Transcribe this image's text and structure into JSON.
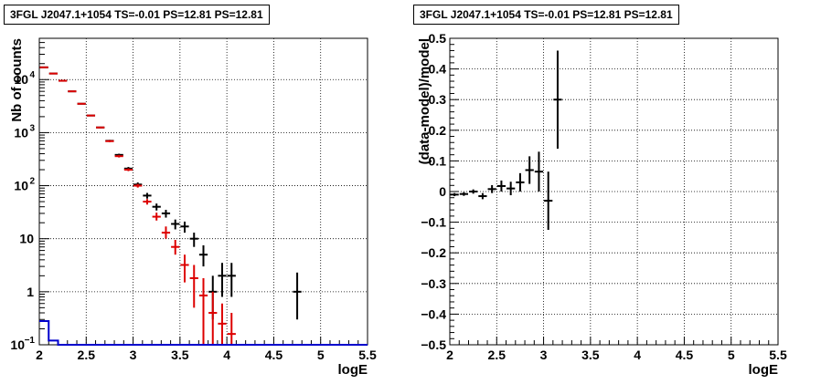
{
  "chart_data": [
    {
      "type": "scatter",
      "title": "3FGL J2047.1+1054 TS=-0.01 PS=12.81 PS=12.81",
      "xlabel": "logE",
      "ylabel": "Nb of counts",
      "xlim": [
        2,
        5.5
      ],
      "ylim": [
        0.1,
        60000
      ],
      "yscale": "log",
      "grid": true,
      "x_ticks": [
        2,
        2.5,
        3,
        3.5,
        4,
        4.5,
        5,
        5.5
      ],
      "x_tick_labels": [
        "2",
        "2.5",
        "3",
        "3.5",
        "4",
        "4.5",
        "5",
        "5.5"
      ],
      "y_ticks": [
        0.1,
        1,
        10,
        100,
        1000,
        10000
      ],
      "y_tick_labels": [
        [
          "10",
          "−1"
        ],
        [
          "1",
          ""
        ],
        [
          "10",
          ""
        ],
        [
          "10",
          "2"
        ],
        [
          "10",
          "3"
        ],
        [
          "10",
          "4"
        ]
      ],
      "colors": {
        "data": "#000000",
        "model": "#dd0000",
        "background": "#0000cc"
      },
      "series": [
        {
          "style": "crosses",
          "color": "#000000",
          "points": [
            {
              "x": 2.05,
              "y": 17000,
              "ylo": 16800,
              "yhi": 17200
            },
            {
              "x": 2.15,
              "y": 13000,
              "ylo": 12800,
              "yhi": 13200
            },
            {
              "x": 2.25,
              "y": 9500,
              "ylo": 9350,
              "yhi": 9650
            },
            {
              "x": 2.35,
              "y": 6000,
              "ylo": 5900,
              "yhi": 6100
            },
            {
              "x": 2.45,
              "y": 3500,
              "ylo": 3430,
              "yhi": 3570
            },
            {
              "x": 2.55,
              "y": 2100,
              "ylo": 2050,
              "yhi": 2150
            },
            {
              "x": 2.65,
              "y": 1250,
              "ylo": 1210,
              "yhi": 1290
            },
            {
              "x": 2.75,
              "y": 700,
              "ylo": 670,
              "yhi": 730
            },
            {
              "x": 2.85,
              "y": 380,
              "ylo": 360,
              "yhi": 400
            },
            {
              "x": 2.95,
              "y": 210,
              "ylo": 195,
              "yhi": 225
            },
            {
              "x": 3.05,
              "y": 105,
              "ylo": 95,
              "yhi": 115
            },
            {
              "x": 3.15,
              "y": 65,
              "ylo": 57,
              "yhi": 73
            },
            {
              "x": 3.25,
              "y": 40,
              "ylo": 34,
              "yhi": 46
            },
            {
              "x": 3.35,
              "y": 30,
              "ylo": 25,
              "yhi": 35
            },
            {
              "x": 3.45,
              "y": 19,
              "ylo": 15,
              "yhi": 23
            },
            {
              "x": 3.55,
              "y": 17,
              "ylo": 13,
              "yhi": 21
            },
            {
              "x": 3.65,
              "y": 10,
              "ylo": 7,
              "yhi": 13
            },
            {
              "x": 3.75,
              "y": 5,
              "ylo": 3,
              "yhi": 7.5
            },
            {
              "x": 3.85,
              "y": 1,
              "ylo": 0.3,
              "yhi": 2
            },
            {
              "x": 3.95,
              "y": 2,
              "ylo": 0.8,
              "yhi": 3.5
            },
            {
              "x": 4.05,
              "y": 2,
              "ylo": 0.8,
              "yhi": 3.5
            },
            {
              "x": 4.75,
              "y": 1,
              "ylo": 0.3,
              "yhi": 2.3
            }
          ]
        },
        {
          "style": "crosses",
          "color": "#dd0000",
          "points": [
            {
              "x": 2.05,
              "y": 17000,
              "ylo": 16800,
              "yhi": 17200
            },
            {
              "x": 2.15,
              "y": 13000,
              "ylo": 12800,
              "yhi": 13200
            },
            {
              "x": 2.25,
              "y": 9500,
              "ylo": 9350,
              "yhi": 9650
            },
            {
              "x": 2.35,
              "y": 6000,
              "ylo": 5900,
              "yhi": 6100
            },
            {
              "x": 2.45,
              "y": 3500,
              "ylo": 3430,
              "yhi": 3570
            },
            {
              "x": 2.55,
              "y": 2100,
              "ylo": 2050,
              "yhi": 2150
            },
            {
              "x": 2.65,
              "y": 1250,
              "ylo": 1210,
              "yhi": 1290
            },
            {
              "x": 2.75,
              "y": 690,
              "ylo": 660,
              "yhi": 720
            },
            {
              "x": 2.85,
              "y": 360,
              "ylo": 340,
              "yhi": 380
            },
            {
              "x": 2.95,
              "y": 200,
              "ylo": 188,
              "yhi": 212
            },
            {
              "x": 3.05,
              "y": 100,
              "ylo": 92,
              "yhi": 108
            },
            {
              "x": 3.15,
              "y": 50,
              "ylo": 44,
              "yhi": 56
            },
            {
              "x": 3.25,
              "y": 26,
              "ylo": 22,
              "yhi": 31
            },
            {
              "x": 3.35,
              "y": 13,
              "ylo": 10,
              "yhi": 17
            },
            {
              "x": 3.45,
              "y": 7,
              "ylo": 5,
              "yhi": 9.5
            },
            {
              "x": 3.55,
              "y": 3.2,
              "ylo": 1.5,
              "yhi": 5
            },
            {
              "x": 3.65,
              "y": 1.8,
              "ylo": 0.5,
              "yhi": 3.2
            },
            {
              "x": 3.75,
              "y": 0.85,
              "ylo": 0.1,
              "yhi": 1.8
            },
            {
              "x": 3.85,
              "y": 0.4,
              "ylo": 0.1,
              "yhi": 1.0
            },
            {
              "x": 3.95,
              "y": 0.25,
              "ylo": 0.1,
              "yhi": 0.6
            },
            {
              "x": 4.05,
              "y": 0.16,
              "ylo": 0.1,
              "yhi": 0.4
            }
          ]
        },
        {
          "style": "step",
          "color": "#0000cc",
          "points": [
            {
              "x": 2.0,
              "y": 0.28
            },
            {
              "x": 2.1,
              "y": 0.12
            },
            {
              "x": 2.2,
              "y": 0.1
            },
            {
              "x": 5.5,
              "y": 0.1
            }
          ]
        }
      ]
    },
    {
      "type": "scatter",
      "title": "3FGL J2047.1+1054 TS=-0.01 PS=12.81 PS=12.81",
      "xlabel": "logE",
      "ylabel": "(data-model)/model",
      "xlim": [
        2,
        5.5
      ],
      "ylim": [
        -0.5,
        0.5
      ],
      "yscale": "linear",
      "grid": true,
      "x_ticks": [
        2,
        2.5,
        3,
        3.5,
        4,
        4.5,
        5,
        5.5
      ],
      "x_tick_labels": [
        "2",
        "2.5",
        "3",
        "3.5",
        "4",
        "4.5",
        "5",
        "5.5"
      ],
      "y_ticks": [
        -0.5,
        -0.4,
        -0.3,
        -0.2,
        -0.1,
        0,
        0.1,
        0.2,
        0.3,
        0.4,
        0.5
      ],
      "y_tick_labels": [
        "−0.5",
        "−0.4",
        "−0.3",
        "−0.2",
        "−0.1",
        "0",
        "0.1",
        "0.2",
        "0.3",
        "0.4",
        "0.5"
      ],
      "series": [
        {
          "style": "crosses",
          "color": "#000000",
          "points": [
            {
              "x": 2.05,
              "y": -0.01,
              "ylo": -0.015,
              "yhi": -0.005
            },
            {
              "x": 2.15,
              "y": -0.008,
              "ylo": -0.014,
              "yhi": -0.002
            },
            {
              "x": 2.25,
              "y": 0.0,
              "ylo": -0.007,
              "yhi": 0.007
            },
            {
              "x": 2.35,
              "y": -0.015,
              "ylo": -0.025,
              "yhi": -0.005
            },
            {
              "x": 2.45,
              "y": 0.008,
              "ylo": -0.005,
              "yhi": 0.021
            },
            {
              "x": 2.55,
              "y": 0.018,
              "ylo": 0.0,
              "yhi": 0.036
            },
            {
              "x": 2.65,
              "y": 0.01,
              "ylo": -0.012,
              "yhi": 0.032
            },
            {
              "x": 2.75,
              "y": 0.03,
              "ylo": 0.0,
              "yhi": 0.06
            },
            {
              "x": 2.85,
              "y": 0.07,
              "ylo": 0.025,
              "yhi": 0.115
            },
            {
              "x": 2.95,
              "y": 0.065,
              "ylo": 0.0,
              "yhi": 0.13
            },
            {
              "x": 3.05,
              "y": -0.03,
              "ylo": -0.125,
              "yhi": 0.065
            },
            {
              "x": 3.15,
              "y": 0.3,
              "ylo": 0.14,
              "yhi": 0.46
            }
          ]
        }
      ]
    }
  ]
}
